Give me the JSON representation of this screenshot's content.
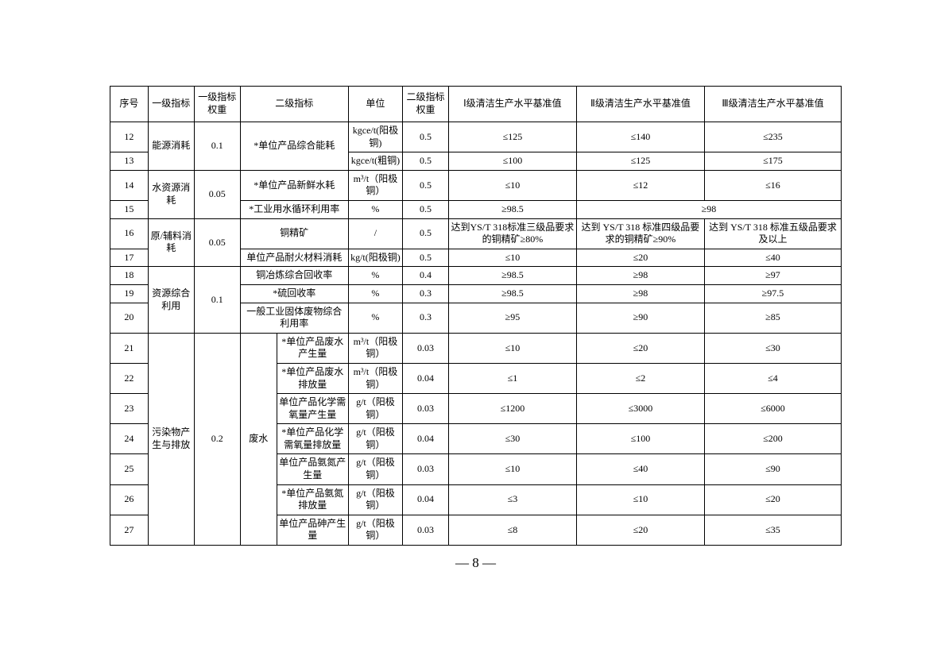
{
  "pageNumber": "— 8 —",
  "header": {
    "seq": "序号",
    "lvl1": "一级指标",
    "lvl1w": "一级指标权重",
    "lvl2": "二级指标",
    "unit": "单位",
    "lvl2w": "二级指标权重",
    "b1": "Ⅰ级清洁生产水平基准值",
    "b2": "Ⅱ级清洁生产水平基准值",
    "b3": "Ⅲ级清洁生产水平基准值"
  },
  "groups": {
    "energy": {
      "name": "能源消耗",
      "weight": "0.1"
    },
    "water": {
      "name": "水资源消耗",
      "weight": "0.05"
    },
    "material": {
      "name": "原/辅料消耗",
      "weight": "0.05"
    },
    "resource": {
      "name": "资源综合利用",
      "weight": "0.1"
    },
    "pollutant": {
      "name": "污染物产生与排放",
      "weight": "0.2",
      "sub": "废水"
    }
  },
  "rows": {
    "r12": {
      "seq": "12",
      "lvl2": "*单位产品综合能耗",
      "unit": "kgce/t(阳极铜)",
      "w": "0.5",
      "b1": "≤125",
      "b2": "≤140",
      "b3": "≤235"
    },
    "r13": {
      "seq": "13",
      "unit": "kgce/t(粗铜)",
      "w": "0.5",
      "b1": "≤100",
      "b2": "≤125",
      "b3": "≤175"
    },
    "r14": {
      "seq": "14",
      "lvl2": "*单位产品新鲜水耗",
      "unit": "m³/t（阳极铜）",
      "w": "0.5",
      "b1": "≤10",
      "b2": "≤12",
      "b3": "≤16"
    },
    "r15": {
      "seq": "15",
      "lvl2": "*工业用水循环利用率",
      "unit": "%",
      "w": "0.5",
      "b1": "≥98.5",
      "b23": "≥98"
    },
    "r16": {
      "seq": "16",
      "lvl2": "铜精矿",
      "unit": "/",
      "w": "0.5",
      "b1": "达到YS/T 318标准三级品要求的铜精矿≥80%",
      "b2": "达到 YS/T 318 标准四级品要求的铜精矿≥90%",
      "b3": "达到 YS/T 318 标准五级品要求及以上"
    },
    "r17": {
      "seq": "17",
      "lvl2": "单位产品耐火材料消耗",
      "unit": "kg/t(阳极铜)",
      "w": "0.5",
      "b1": "≤10",
      "b2": "≤20",
      "b3": "≤40"
    },
    "r18": {
      "seq": "18",
      "lvl2": "铜冶炼综合回收率",
      "unit": "%",
      "w": "0.4",
      "b1": "≥98.5",
      "b2": "≥98",
      "b3": "≥97"
    },
    "r19": {
      "seq": "19",
      "lvl2": "*硫回收率",
      "unit": "%",
      "w": "0.3",
      "b1": "≥98.5",
      "b2": "≥98",
      "b3": "≥97.5"
    },
    "r20": {
      "seq": "20",
      "lvl2": "一般工业固体废物综合利用率",
      "unit": "%",
      "w": "0.3",
      "b1": "≥95",
      "b2": "≥90",
      "b3": "≥85"
    },
    "r21": {
      "seq": "21",
      "lvl2": "*单位产品废水产生量",
      "unit": "m³/t（阳极铜）",
      "w": "0.03",
      "b1": "≤10",
      "b2": "≤20",
      "b3": "≤30"
    },
    "r22": {
      "seq": "22",
      "lvl2": "*单位产品废水排放量",
      "unit": "m³/t（阳极铜）",
      "w": "0.04",
      "b1": "≤1",
      "b2": "≤2",
      "b3": "≤4"
    },
    "r23": {
      "seq": "23",
      "lvl2": "单位产品化学需氧量产生量",
      "unit": "g/t（阳极铜）",
      "w": "0.03",
      "b1": "≤1200",
      "b2": "≤3000",
      "b3": "≤6000"
    },
    "r24": {
      "seq": "24",
      "lvl2": "*单位产品化学需氧量排放量",
      "unit": "g/t（阳极铜）",
      "w": "0.04",
      "b1": "≤30",
      "b2": "≤100",
      "b3": "≤200"
    },
    "r25": {
      "seq": "25",
      "lvl2": "单位产品氨氮产生量",
      "unit": "g/t（阳极铜）",
      "w": "0.03",
      "b1": "≤10",
      "b2": "≤40",
      "b3": "≤90"
    },
    "r26": {
      "seq": "26",
      "lvl2": "*单位产品氨氮排放量",
      "unit": "g/t（阳极铜）",
      "w": "0.04",
      "b1": "≤3",
      "b2": "≤10",
      "b3": "≤20"
    },
    "r27": {
      "seq": "27",
      "lvl2": "单位产品砷产生量",
      "unit": "g/t（阳极铜）",
      "w": "0.03",
      "b1": "≤8",
      "b2": "≤20",
      "b3": "≤35"
    }
  }
}
